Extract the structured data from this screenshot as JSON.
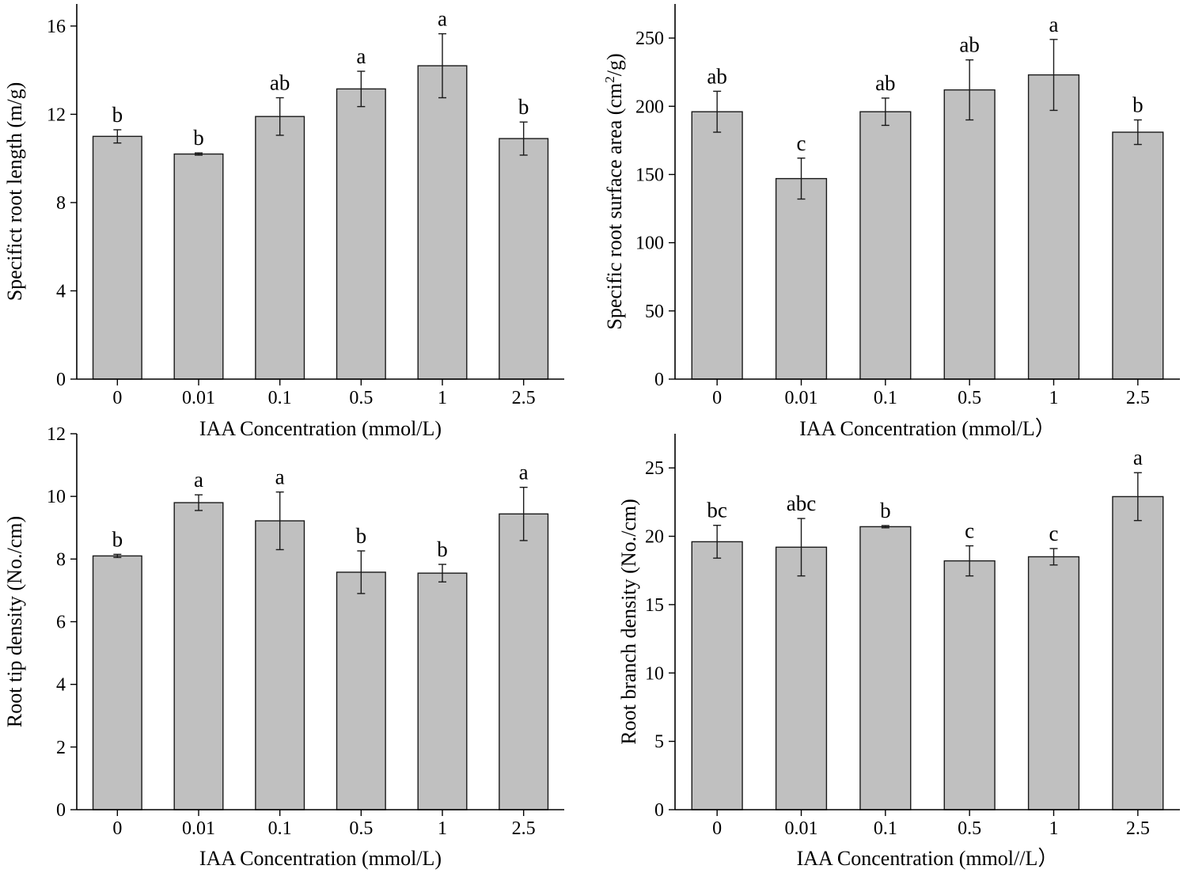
{
  "chart_data": [
    {
      "type": "bar",
      "categories": [
        "0",
        "0.01",
        "0.1",
        "0.5",
        "1",
        "2.5"
      ],
      "values": [
        11.0,
        10.2,
        11.9,
        13.15,
        14.2,
        10.9
      ],
      "errors": [
        0.3,
        0.05,
        0.85,
        0.8,
        1.45,
        0.75
      ],
      "sig_letters": [
        "b",
        "b",
        "ab",
        "a",
        "a",
        "b"
      ],
      "xlabel": "IAA Concentration (mmol/L)",
      "ylabel": "Specifict root length (m/g)",
      "ylim": [
        0,
        17
      ],
      "yticks": [
        0,
        4,
        8,
        12,
        16
      ],
      "ytick_labels": [
        "0",
        "4",
        "8",
        "12",
        "16"
      ]
    },
    {
      "type": "bar",
      "categories": [
        "0",
        "0.01",
        "0.1",
        "0.5",
        "1",
        "2.5"
      ],
      "values": [
        196,
        147,
        196,
        212,
        223,
        181
      ],
      "errors": [
        15,
        15,
        10,
        22,
        26,
        9
      ],
      "sig_letters": [
        "ab",
        "c",
        "ab",
        "ab",
        "a",
        "b"
      ],
      "xlabel": "IAA Concentration (mmol/L）",
      "ylabel": "Specific root surface area (cm",
      "ylabel_sup": "2",
      "ylabel_end": "/g)",
      "ylim": [
        0,
        275
      ],
      "yticks": [
        0,
        50,
        100,
        150,
        200,
        250
      ],
      "ytick_labels": [
        "0",
        "50",
        "100",
        "150",
        "200",
        "250"
      ]
    },
    {
      "type": "bar",
      "categories": [
        "0",
        "0.01",
        "0.1",
        "0.5",
        "1",
        "2.5"
      ],
      "values": [
        8.1,
        9.8,
        9.22,
        7.58,
        7.55,
        9.44
      ],
      "errors": [
        0.05,
        0.25,
        0.92,
        0.68,
        0.28,
        0.85
      ],
      "sig_letters": [
        "b",
        "a",
        "a",
        "b",
        "b",
        "a"
      ],
      "xlabel": "IAA Concentration (mmol/L)",
      "ylabel": "Root tip density (No./cm)",
      "ylim": [
        0,
        12
      ],
      "yticks": [
        0,
        2,
        4,
        6,
        8,
        10,
        12
      ],
      "ytick_labels": [
        "0",
        "2",
        "4",
        "6",
        "8",
        "10",
        "12"
      ]
    },
    {
      "type": "bar",
      "categories": [
        "0",
        "0.01",
        "0.1",
        "0.5",
        "1",
        "2.5"
      ],
      "values": [
        19.6,
        19.2,
        20.7,
        18.2,
        18.5,
        22.9
      ],
      "errors": [
        1.2,
        2.1,
        0.08,
        1.1,
        0.6,
        1.75
      ],
      "sig_letters": [
        "bc",
        "abc",
        "b",
        "c",
        "c",
        "a"
      ],
      "xlabel": "IAA Concentration (mmol//L）",
      "ylabel": "Root branch density (No./cm)",
      "ylim": [
        0,
        27.5
      ],
      "yticks": [
        0,
        5,
        10,
        15,
        20,
        25
      ],
      "ytick_labels": [
        "0",
        "5",
        "10",
        "15",
        "20",
        "25"
      ]
    }
  ]
}
